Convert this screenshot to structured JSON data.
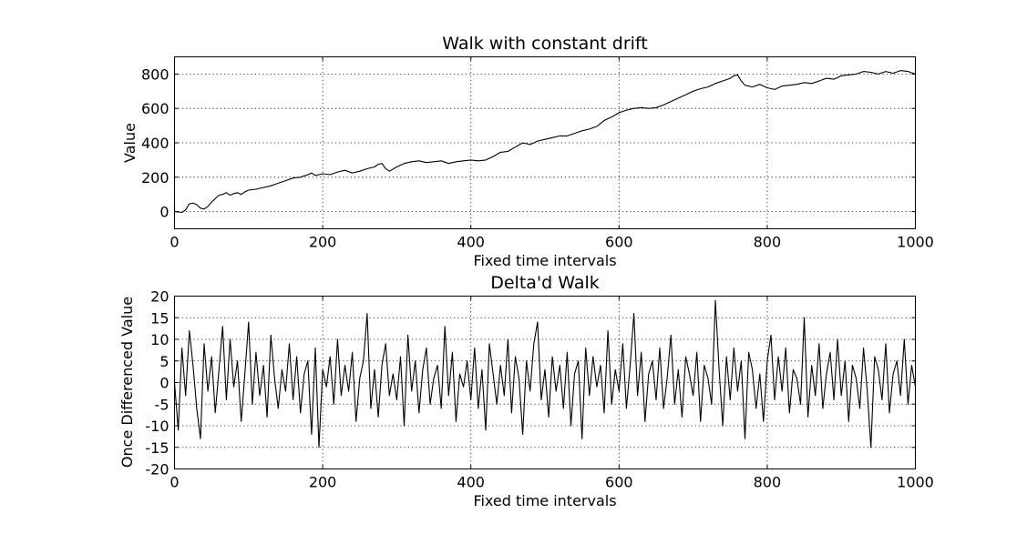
{
  "chart_data": [
    {
      "type": "line",
      "title": "Walk with constant drift",
      "xlabel": "Fixed time intervals",
      "ylabel": "Value",
      "xlim": [
        0,
        1000
      ],
      "ylim": [
        -100,
        900
      ],
      "xticks": [
        0,
        200,
        400,
        600,
        800,
        1000
      ],
      "yticks": [
        0,
        200,
        400,
        600,
        800
      ],
      "grid": true,
      "series": [
        {
          "color": "#000000",
          "x": [
            0,
            10,
            15,
            20,
            25,
            30,
            35,
            40,
            45,
            50,
            55,
            60,
            65,
            70,
            75,
            80,
            85,
            90,
            95,
            100,
            110,
            120,
            130,
            140,
            150,
            160,
            170,
            180,
            185,
            190,
            200,
            210,
            220,
            230,
            240,
            250,
            260,
            270,
            275,
            280,
            285,
            290,
            300,
            310,
            320,
            330,
            340,
            350,
            360,
            370,
            380,
            390,
            400,
            410,
            420,
            430,
            440,
            450,
            460,
            470,
            480,
            490,
            500,
            510,
            520,
            530,
            540,
            550,
            560,
            570,
            580,
            590,
            600,
            610,
            620,
            630,
            640,
            650,
            660,
            670,
            680,
            690,
            700,
            710,
            720,
            730,
            740,
            750,
            755,
            760,
            765,
            770,
            780,
            790,
            800,
            810,
            820,
            830,
            840,
            850,
            860,
            870,
            880,
            890,
            900,
            910,
            920,
            930,
            940,
            950,
            960,
            970,
            980,
            990,
            1000
          ],
          "y": [
            0,
            -5,
            10,
            45,
            50,
            40,
            20,
            15,
            30,
            55,
            75,
            95,
            100,
            110,
            95,
            105,
            110,
            100,
            115,
            125,
            130,
            140,
            150,
            165,
            180,
            195,
            200,
            215,
            225,
            210,
            220,
            215,
            230,
            240,
            225,
            235,
            250,
            260,
            275,
            280,
            250,
            235,
            260,
            280,
            290,
            295,
            285,
            290,
            295,
            280,
            290,
            295,
            300,
            295,
            300,
            320,
            345,
            350,
            375,
            400,
            390,
            410,
            420,
            430,
            440,
            440,
            455,
            470,
            480,
            495,
            530,
            550,
            575,
            590,
            600,
            605,
            600,
            605,
            620,
            640,
            660,
            680,
            700,
            715,
            725,
            745,
            760,
            775,
            790,
            795,
            760,
            735,
            725,
            740,
            720,
            710,
            730,
            735,
            740,
            750,
            745,
            760,
            775,
            770,
            790,
            795,
            800,
            815,
            810,
            800,
            815,
            805,
            820,
            815,
            800
          ]
        }
      ]
    },
    {
      "type": "line",
      "title": "Delta'd Walk",
      "xlabel": "Fixed time intervals",
      "ylabel": "Once Differenced Value",
      "xlim": [
        0,
        1000
      ],
      "ylim": [
        -20,
        20
      ],
      "xticks": [
        0,
        200,
        400,
        600,
        800,
        1000
      ],
      "yticks": [
        -20,
        -15,
        -10,
        -5,
        0,
        5,
        10,
        15,
        20
      ],
      "grid": true,
      "series": [
        {
          "color": "#000000",
          "x": [
            0,
            5,
            10,
            15,
            20,
            25,
            30,
            35,
            40,
            45,
            50,
            55,
            60,
            65,
            70,
            75,
            80,
            85,
            90,
            95,
            100,
            105,
            110,
            115,
            120,
            125,
            130,
            135,
            140,
            145,
            150,
            155,
            160,
            165,
            170,
            175,
            180,
            185,
            190,
            195,
            200,
            205,
            210,
            215,
            220,
            225,
            230,
            235,
            240,
            245,
            250,
            255,
            260,
            265,
            270,
            275,
            280,
            285,
            290,
            295,
            300,
            305,
            310,
            315,
            320,
            325,
            330,
            335,
            340,
            345,
            350,
            355,
            360,
            365,
            370,
            375,
            380,
            385,
            390,
            395,
            400,
            405,
            410,
            415,
            420,
            425,
            430,
            435,
            440,
            445,
            450,
            455,
            460,
            465,
            470,
            475,
            480,
            485,
            490,
            495,
            500,
            505,
            510,
            515,
            520,
            525,
            530,
            535,
            540,
            545,
            550,
            555,
            560,
            565,
            570,
            575,
            580,
            585,
            590,
            595,
            600,
            605,
            610,
            615,
            620,
            625,
            630,
            635,
            640,
            645,
            650,
            655,
            660,
            665,
            670,
            675,
            680,
            685,
            690,
            695,
            700,
            705,
            710,
            715,
            720,
            725,
            730,
            735,
            740,
            745,
            750,
            755,
            760,
            765,
            770,
            775,
            780,
            785,
            790,
            795,
            800,
            805,
            810,
            815,
            820,
            825,
            830,
            835,
            840,
            845,
            850,
            855,
            860,
            865,
            870,
            875,
            880,
            885,
            890,
            895,
            900,
            905,
            910,
            915,
            920,
            925,
            930,
            935,
            940,
            945,
            950,
            955,
            960,
            965,
            970,
            975,
            980,
            985,
            990,
            995,
            1000
          ],
          "y": [
            0,
            -11,
            8,
            -3,
            12,
            4,
            -6,
            -13,
            9,
            -2,
            6,
            -7,
            3,
            13,
            -4,
            10,
            -1,
            5,
            -9,
            2,
            14,
            -5,
            7,
            -3,
            4,
            -8,
            11,
            1,
            -6,
            3,
            -2,
            9,
            -4,
            6,
            -7,
            2,
            5,
            -12,
            8,
            -15,
            3,
            -1,
            6,
            -5,
            10,
            -3,
            4,
            -2,
            7,
            -9,
            1,
            5,
            16,
            -6,
            3,
            -8,
            4,
            9,
            -3,
            2,
            -4,
            6,
            -10,
            11,
            -2,
            5,
            -7,
            3,
            8,
            -5,
            1,
            4,
            -6,
            13,
            -3,
            7,
            -9,
            2,
            -1,
            5,
            -4,
            8,
            -6,
            3,
            -11,
            9,
            2,
            -5,
            4,
            -3,
            10,
            -7,
            6,
            1,
            -12,
            5,
            -2,
            9,
            14,
            -4,
            3,
            -8,
            6,
            -2,
            4,
            -6,
            7,
            -10,
            2,
            5,
            -13,
            8,
            -3,
            6,
            -1,
            4,
            -7,
            12,
            -5,
            3,
            -2,
            9,
            -6,
            4,
            16,
            -3,
            7,
            -9,
            2,
            5,
            -4,
            8,
            -6,
            1,
            11,
            -5,
            3,
            -8,
            6,
            2,
            -3,
            7,
            -9,
            4,
            1,
            -5,
            19,
            3,
            -10,
            6,
            -4,
            8,
            -2,
            5,
            -13,
            7,
            3,
            -6,
            2,
            -9,
            5,
            11,
            -4,
            6,
            -2,
            8,
            -7,
            3,
            1,
            -5,
            15,
            -8,
            4,
            -3,
            9,
            -6,
            2,
            7,
            -4,
            10,
            -3,
            5,
            -9,
            4,
            1,
            -6,
            8,
            -2,
            -15,
            6,
            3,
            -4,
            9,
            -7,
            2,
            5,
            -3,
            10,
            -5,
            4,
            -1
          ]
        }
      ]
    }
  ]
}
